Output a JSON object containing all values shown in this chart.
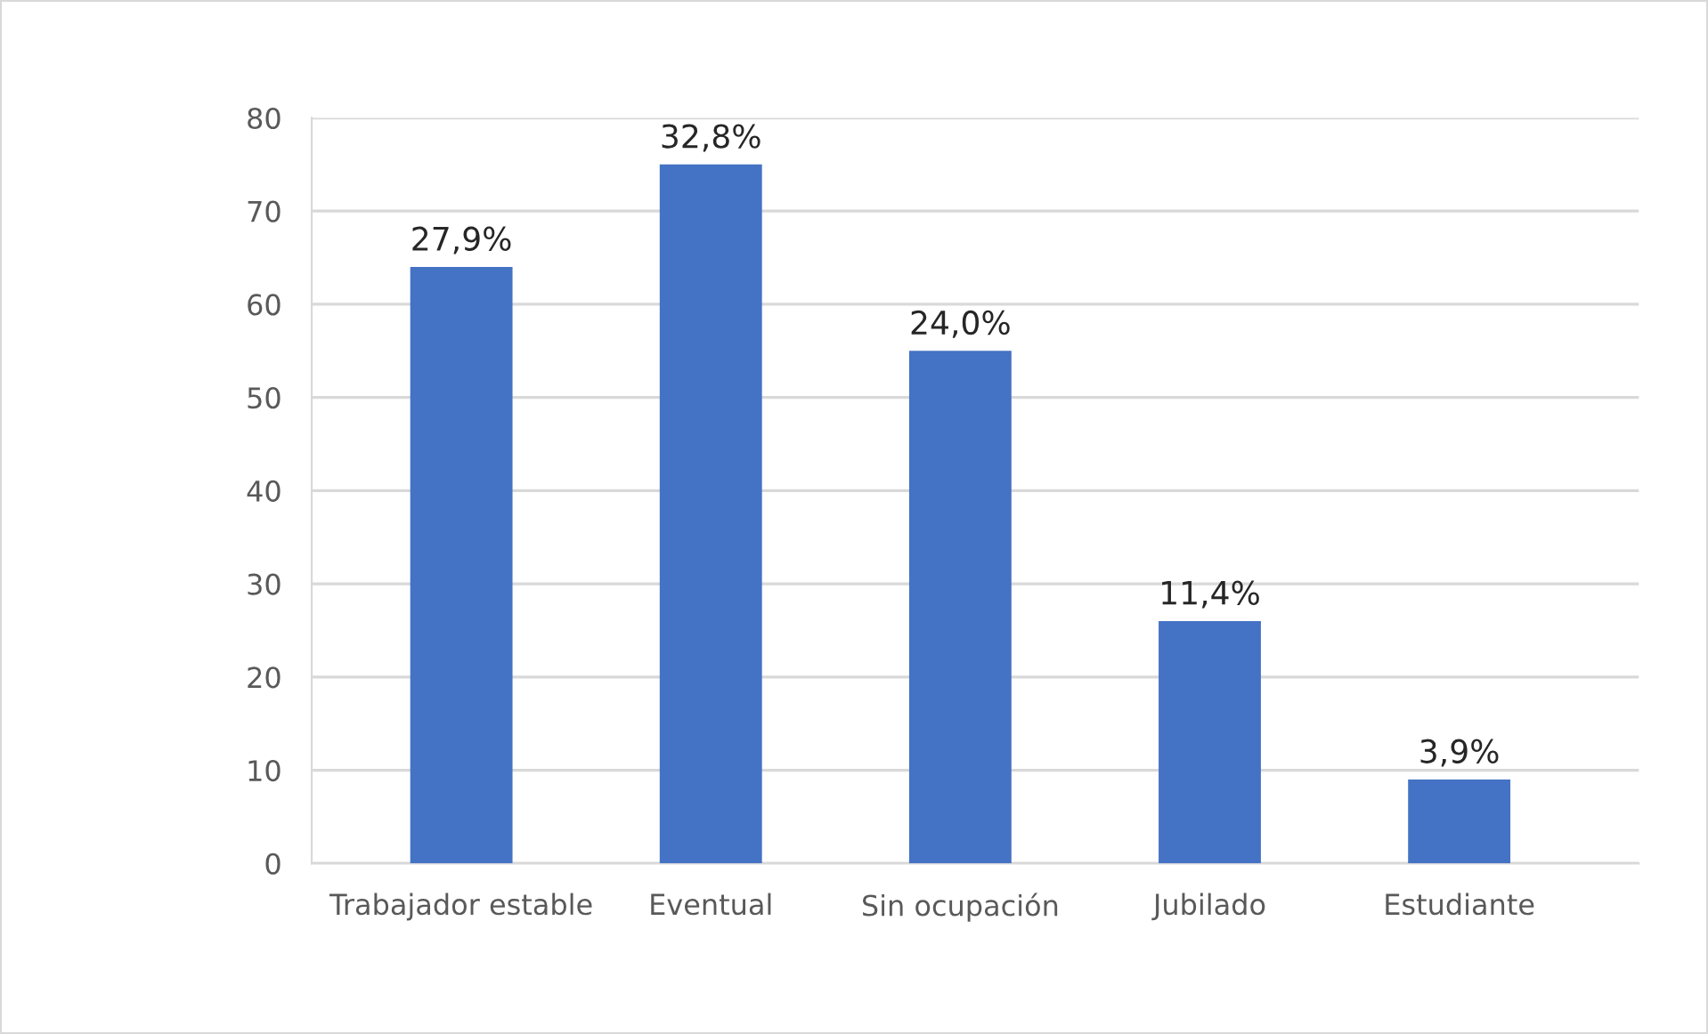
{
  "chart_data": {
    "type": "bar",
    "categories": [
      "Trabajador estable",
      "Eventual",
      "Sin ocupación",
      "Jubilado",
      "Estudiante"
    ],
    "values": [
      64,
      75,
      55,
      26,
      9
    ],
    "color": "#4472c4",
    "ylim": [
      0,
      80
    ],
    "yticks": [
      0,
      10,
      20,
      30,
      40,
      50,
      60,
      70,
      80
    ],
    "grid": "y",
    "legend": false,
    "annotations": [
      {
        "text": "27,9%",
        "x": "Trabajador estable",
        "y": 64
      },
      {
        "text": "32,8%",
        "x": "Eventual",
        "y": 75
      },
      {
        "text": "24,0%",
        "x": "Sin ocupación",
        "y": 55
      },
      {
        "text": "11,4%",
        "x": "Jubilado",
        "y": 26
      },
      {
        "text": "3,9%",
        "x": "Estudiante",
        "y": 9
      }
    ]
  }
}
